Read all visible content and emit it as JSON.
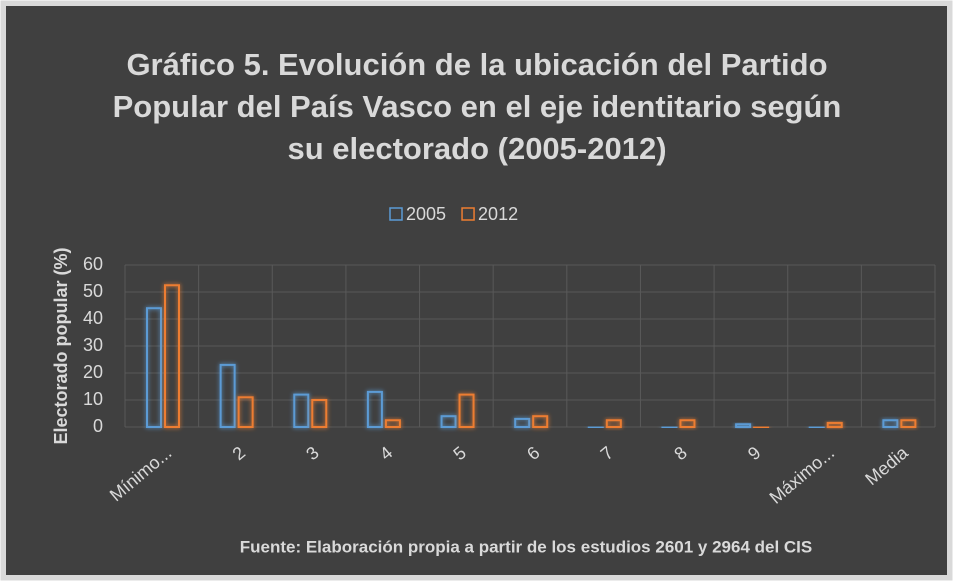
{
  "chart_data": {
    "type": "bar",
    "title": "Gráfico 5. Evolución de la ubicación del Partido Popular del País Vasco en el eje identitario según su electorado (2005-2012)",
    "categories": [
      "Mínimo...",
      "2",
      "3",
      "4",
      "5",
      "6",
      "7",
      "8",
      "9",
      "Máximo...",
      "Media"
    ],
    "series": [
      {
        "name": "2005",
        "color": "#5b9bd5",
        "values": [
          44,
          23,
          12,
          13,
          4,
          3,
          0,
          0,
          1,
          0,
          2.5
        ]
      },
      {
        "name": "2012",
        "color": "#ed7d31",
        "values": [
          52.5,
          11,
          10,
          2.5,
          12,
          4,
          2.5,
          2.5,
          0,
          1.5,
          2.5
        ]
      }
    ],
    "ylabel": "Electorado popular (%)",
    "ylim": [
      0,
      60
    ],
    "yticks": [
      0,
      10,
      20,
      30,
      40,
      50,
      60
    ],
    "grid": true,
    "legend": "top",
    "source": "Fuente: Elaboración propia a partir de los estudios 2601 y 2964 del CIS"
  }
}
